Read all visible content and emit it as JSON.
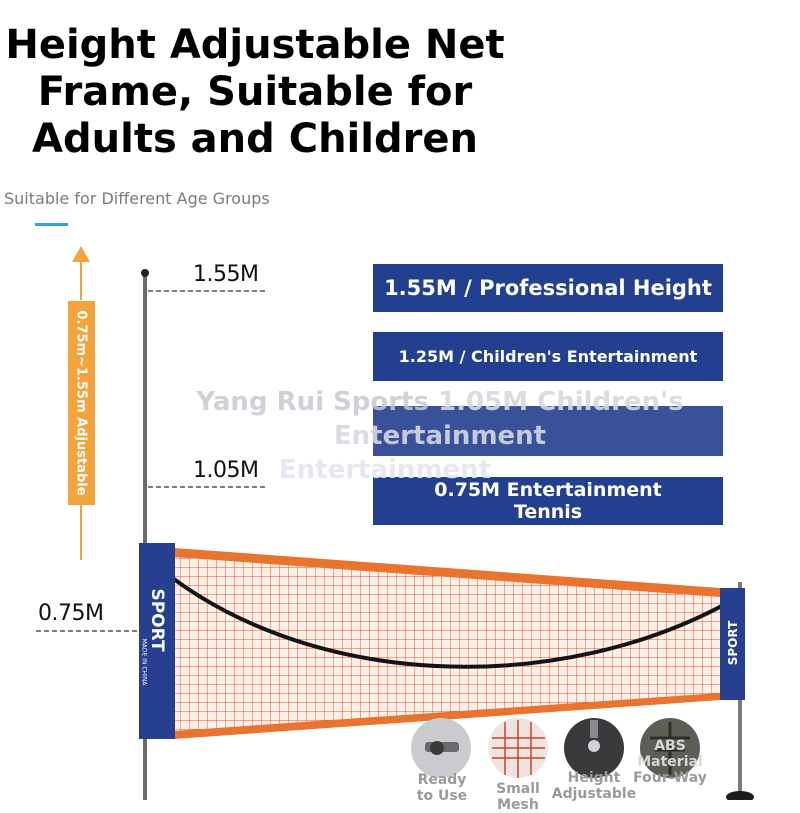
{
  "title": {
    "line1": "Height Adjustable Net",
    "line2": "Frame, Suitable for",
    "line3": "Adults and Children"
  },
  "subtitle": "Suitable for Different Age Groups",
  "adjustable_label": "0.75m~1.55m Adjustable",
  "heights": {
    "h155": "1.55M",
    "h105": "1.05M",
    "h075": "0.75M"
  },
  "badges": [
    "1.55M / Professional Height",
    "1.25M / Children's Entertainment",
    "1.05M Children's Entertainment",
    "0.75M Entertainment Tennis"
  ],
  "watermark": {
    "line1": "Yang Rui Sports",
    "line2": "Entertainment"
  },
  "net": {
    "brand_left": "SPORT",
    "brand_left_small": "MADE IN CHINA",
    "brand_right": "SPORT"
  },
  "features": [
    {
      "line1": "Ready",
      "line2": "to Use"
    },
    {
      "line1": "Small",
      "line2": "Mesh"
    },
    {
      "line1": "Height",
      "line2": "Adjustable"
    },
    {
      "line1": "ABS",
      "line2": "Material",
      "line3": "Four-Way"
    }
  ],
  "colors": {
    "badge_blue": "#233f8f",
    "adjust_orange": "#f2a33c",
    "net_orange": "#e8742f",
    "accent_cyan": "#2fa0d8"
  }
}
